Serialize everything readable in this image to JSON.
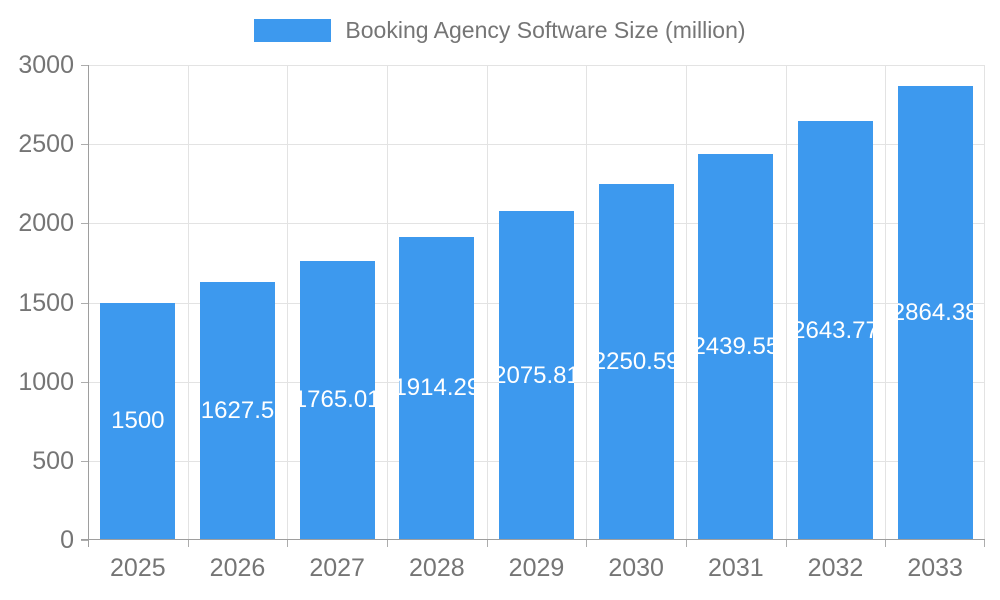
{
  "legend": {
    "label": "Booking Agency Software Size (million)"
  },
  "colors": {
    "bar": "#3D99EE",
    "grid": "#E3E3E3",
    "axis": "#9E9E9E",
    "tick": "#ADADAD",
    "tick_text": "#757575",
    "legend_text": "#757575",
    "bar_label_text": "#FFFFFF",
    "background": "#FFFFFF"
  },
  "chart_data": {
    "type": "bar",
    "title": "Booking Agency Software Size (million)",
    "series_name": "Booking Agency Software Size (million)",
    "categories": [
      "2025",
      "2026",
      "2027",
      "2028",
      "2029",
      "2030",
      "2031",
      "2032",
      "2033"
    ],
    "values": [
      1500,
      1627.5,
      1765.01,
      1914.29,
      2075.81,
      2250.59,
      2439.55,
      2643.77,
      2864.38
    ],
    "bar_labels": [
      "1500",
      "1627.5",
      "1765.01",
      "1914.29",
      "2075.81",
      "2250.59",
      "2439.55",
      "2643.77",
      "2864.38"
    ],
    "xlabel": "",
    "ylabel": "",
    "ylim": [
      0,
      3000
    ],
    "ytick_step": 500,
    "ytick_labels": [
      "0",
      "500",
      "1000",
      "1500",
      "2000",
      "2500",
      "3000"
    ],
    "grid": true,
    "legend_position": "top",
    "bar_label_position": "inside-center"
  }
}
